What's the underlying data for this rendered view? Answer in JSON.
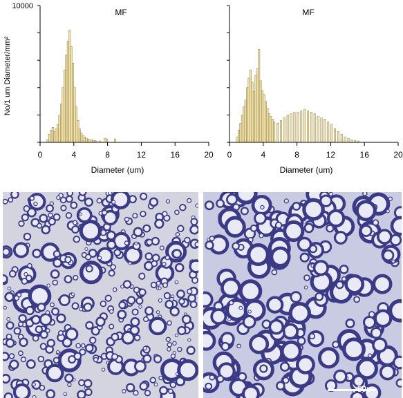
{
  "chart_data": [
    {
      "type": "bar",
      "title": "MF",
      "ylabel": "No/1 um Diameter/mm²",
      "xlabel": "Diameter (um)",
      "xlim": [
        0,
        20
      ],
      "ylim": [
        0,
        10000
      ],
      "xticks": [
        "0",
        "4",
        "8",
        "12",
        "16",
        "20"
      ],
      "yticks": [
        "10000"
      ],
      "bin_width": 0.2,
      "bar_color": "#f4e2a1",
      "bins": [
        {
          "x": 0.8,
          "y": 200
        },
        {
          "x": 1.0,
          "y": 600
        },
        {
          "x": 1.2,
          "y": 900
        },
        {
          "x": 1.4,
          "y": 1100
        },
        {
          "x": 1.6,
          "y": 800
        },
        {
          "x": 1.8,
          "y": 1000
        },
        {
          "x": 2.0,
          "y": 1300
        },
        {
          "x": 2.2,
          "y": 2000
        },
        {
          "x": 2.4,
          "y": 2800
        },
        {
          "x": 2.6,
          "y": 4000
        },
        {
          "x": 2.8,
          "y": 5300
        },
        {
          "x": 3.0,
          "y": 6400
        },
        {
          "x": 3.2,
          "y": 7400
        },
        {
          "x": 3.4,
          "y": 8200
        },
        {
          "x": 3.6,
          "y": 7000
        },
        {
          "x": 3.8,
          "y": 5800
        },
        {
          "x": 4.0,
          "y": 4000
        },
        {
          "x": 4.2,
          "y": 2600
        },
        {
          "x": 4.4,
          "y": 1600
        },
        {
          "x": 4.6,
          "y": 1000
        },
        {
          "x": 4.8,
          "y": 700
        },
        {
          "x": 5.0,
          "y": 500
        },
        {
          "x": 5.2,
          "y": 400
        },
        {
          "x": 5.4,
          "y": 300
        },
        {
          "x": 5.6,
          "y": 250
        },
        {
          "x": 5.8,
          "y": 200
        },
        {
          "x": 6.0,
          "y": 180
        },
        {
          "x": 6.2,
          "y": 150
        },
        {
          "x": 6.4,
          "y": 120
        },
        {
          "x": 6.6,
          "y": 100
        },
        {
          "x": 7.0,
          "y": 100
        },
        {
          "x": 7.6,
          "y": 300
        },
        {
          "x": 7.8,
          "y": 250
        },
        {
          "x": 8.8,
          "y": 250
        }
      ]
    },
    {
      "type": "bar",
      "title": "MF",
      "xlabel": "Diameter (um)",
      "xlim": [
        0,
        20
      ],
      "ylim": [
        0,
        10000
      ],
      "xticks": [
        "0",
        "4",
        "8",
        "12",
        "16",
        "20"
      ],
      "bin_width": 0.2,
      "bar_color": "#f4e2a1",
      "bins": [
        {
          "x": 0.8,
          "y": 400
        },
        {
          "x": 1.0,
          "y": 900
        },
        {
          "x": 1.2,
          "y": 1400
        },
        {
          "x": 1.4,
          "y": 2000
        },
        {
          "x": 1.6,
          "y": 2600
        },
        {
          "x": 1.8,
          "y": 3100
        },
        {
          "x": 2.0,
          "y": 4000
        },
        {
          "x": 2.2,
          "y": 4700
        },
        {
          "x": 2.4,
          "y": 5300
        },
        {
          "x": 2.6,
          "y": 4400
        },
        {
          "x": 2.8,
          "y": 3700
        },
        {
          "x": 3.0,
          "y": 4900
        },
        {
          "x": 3.2,
          "y": 5400
        },
        {
          "x": 3.4,
          "y": 6800
        },
        {
          "x": 3.6,
          "y": 4500
        },
        {
          "x": 3.8,
          "y": 3800
        },
        {
          "x": 4.0,
          "y": 3500
        },
        {
          "x": 4.2,
          "y": 3000
        },
        {
          "x": 4.4,
          "y": 2500
        },
        {
          "x": 4.6,
          "y": 2100
        },
        {
          "x": 4.8,
          "y": 1900
        },
        {
          "x": 5.0,
          "y": 1700
        },
        {
          "x": 5.2,
          "y": 1500
        },
        {
          "x": 5.6,
          "y": 1400
        },
        {
          "x": 6.0,
          "y": 1600
        },
        {
          "x": 6.4,
          "y": 1800
        },
        {
          "x": 6.8,
          "y": 2000
        },
        {
          "x": 7.2,
          "y": 2100
        },
        {
          "x": 7.6,
          "y": 2200
        },
        {
          "x": 8.0,
          "y": 2200
        },
        {
          "x": 8.4,
          "y": 2300
        },
        {
          "x": 8.8,
          "y": 2400
        },
        {
          "x": 9.2,
          "y": 2300
        },
        {
          "x": 9.6,
          "y": 2200
        },
        {
          "x": 10.0,
          "y": 2100
        },
        {
          "x": 10.4,
          "y": 1900
        },
        {
          "x": 10.8,
          "y": 1800
        },
        {
          "x": 11.2,
          "y": 1700
        },
        {
          "x": 11.6,
          "y": 1500
        },
        {
          "x": 12.0,
          "y": 1300
        },
        {
          "x": 12.4,
          "y": 1000
        },
        {
          "x": 12.8,
          "y": 800
        },
        {
          "x": 13.2,
          "y": 600
        },
        {
          "x": 13.6,
          "y": 400
        },
        {
          "x": 14.0,
          "y": 300
        },
        {
          "x": 14.4,
          "y": 200
        },
        {
          "x": 14.8,
          "y": 150
        },
        {
          "x": 15.2,
          "y": 100
        }
      ]
    }
  ],
  "micrographs": {
    "scale_bar_label": "50µ",
    "stain_dark": "#3b3a86",
    "stain_light": "#e9eaf5"
  }
}
